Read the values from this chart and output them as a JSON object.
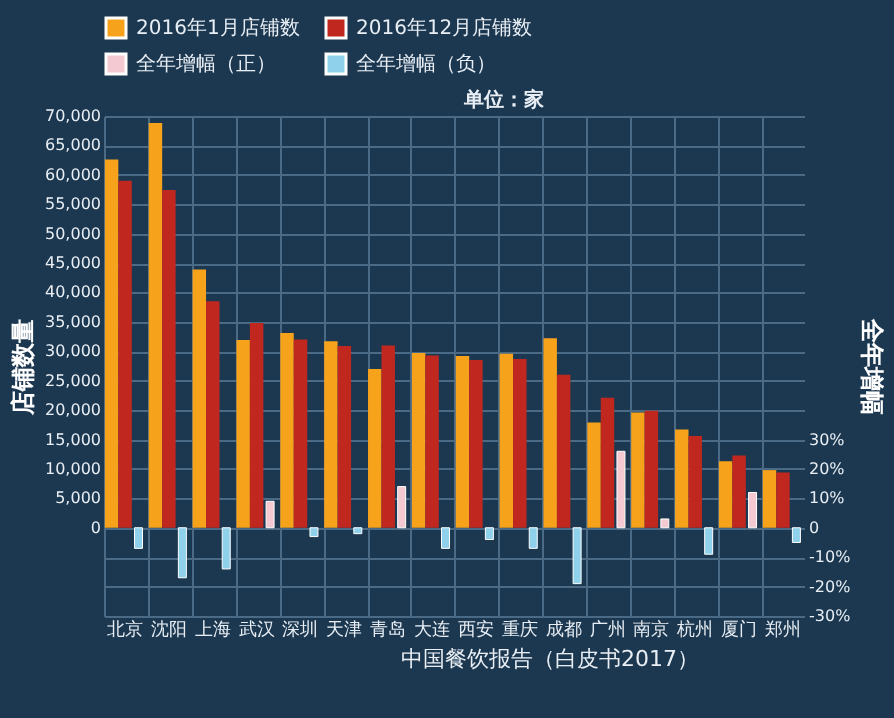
{
  "chart_data": {
    "type": "bar",
    "categories": [
      "北京",
      "沈阳",
      "上海",
      "武汉",
      "深圳",
      "天津",
      "青岛",
      "大连",
      "西安",
      "重庆",
      "成都",
      "广州",
      "南京",
      "杭州",
      "厦门",
      "郑州"
    ],
    "series": [
      {
        "name": "2016年1月店铺数",
        "color": "#f7a21b",
        "values": [
          62600,
          68800,
          43900,
          31900,
          33100,
          31700,
          27000,
          29700,
          29200,
          29600,
          32200,
          17900,
          19600,
          16700,
          11300,
          9800
        ]
      },
      {
        "name": "2016年12月店铺数",
        "color": "#c0281f",
        "values": [
          59000,
          57400,
          38500,
          34800,
          32000,
          30900,
          31000,
          29300,
          28500,
          28700,
          26000,
          22100,
          19900,
          15600,
          12300,
          9400
        ]
      },
      {
        "name": "全年增幅（正）",
        "color": "#f4c9d2",
        "axis": "y2",
        "values": [
          null,
          null,
          null,
          9,
          null,
          null,
          14,
          null,
          null,
          null,
          null,
          26,
          3,
          null,
          12,
          null
        ]
      },
      {
        "name": "全年增幅（负）",
        "color": "#8fd0ea",
        "axis": "y2",
        "values": [
          -7,
          -17,
          -14,
          null,
          -3,
          -2,
          null,
          -7,
          -4,
          -7,
          -19,
          null,
          null,
          -9,
          null,
          -5
        ]
      }
    ],
    "ylabel": "店铺数量",
    "y2label": "全年增幅",
    "ylim": [
      -15000,
      70000
    ],
    "yticks": [
      0,
      {
        "value": 5000,
        "label": "5,000"
      },
      {
        "value": 10000,
        "label": "10,000"
      },
      {
        "value": 15000,
        "label": "15,000"
      },
      {
        "value": 20000,
        "label": "20,000"
      },
      {
        "value": 25000,
        "label": "25,000"
      },
      {
        "value": 30000,
        "label": "30,000"
      },
      {
        "value": 35000,
        "label": "35,000"
      },
      {
        "value": 40000,
        "label": "40,000"
      },
      {
        "value": 45000,
        "label": "45,000"
      },
      {
        "value": 50000,
        "label": "50,000"
      },
      {
        "value": 55000,
        "label": "55,000"
      },
      {
        "value": 60000,
        "label": "60,000"
      },
      {
        "value": 65000,
        "label": "65,000"
      },
      {
        "value": 70000,
        "label": "70,000"
      }
    ],
    "y2lim": [
      -30,
      140
    ],
    "y2ticks": [
      {
        "value": -30,
        "label": "-30%"
      },
      {
        "value": -20,
        "label": "-20%"
      },
      {
        "value": -10,
        "label": "-10%"
      },
      {
        "value": 0,
        "label": "0"
      },
      {
        "value": 10,
        "label": "10%"
      },
      {
        "value": 20,
        "label": "20%"
      },
      {
        "value": 30,
        "label": "30%"
      }
    ],
    "annotations": [
      "单位：家",
      "中国餐饮报告（白皮书2017）"
    ],
    "grid": true,
    "legend": "top"
  }
}
